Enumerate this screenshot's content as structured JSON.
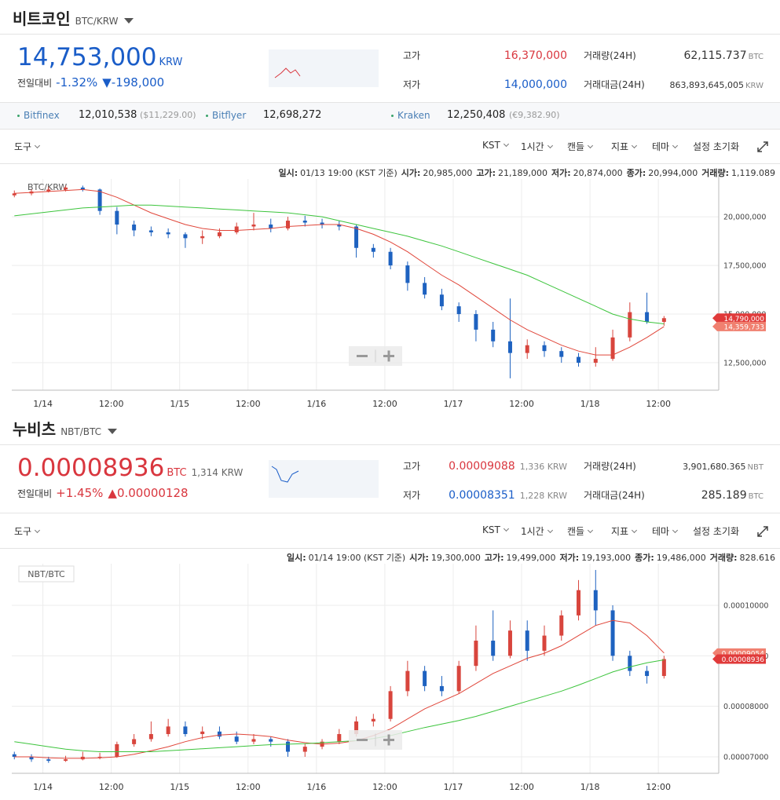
{
  "panels": [
    {
      "name": "비트코인",
      "pair": "BTC/KRW",
      "price": "14,753,000",
      "price_unit": "KRW",
      "price_color": "#1a5dc8",
      "change": {
        "label": "전일대비",
        "pct": "-1.32%",
        "amount": "▼-198,000",
        "color": "#1a5dc8"
      },
      "stats": [
        {
          "label": "고가",
          "value": "16,370,000",
          "color": "#d9363e"
        },
        {
          "label": "저가",
          "value": "14,000,000",
          "color": "#1a5dc8"
        }
      ],
      "volume": [
        {
          "label": "거래량(24H)",
          "value": "62,115.737",
          "unit": "BTC"
        },
        {
          "label": "거래대금(24H)",
          "value": "863,893,645,005",
          "unit": "KRW"
        }
      ],
      "exchanges": [
        {
          "name": "Bitfinex",
          "price": "12,010,538",
          "alt": "($11,229.00)"
        },
        {
          "name": "Bitflyer",
          "price": "12,698,272"
        },
        {
          "name": "Kraken",
          "price": "12,250,408",
          "alt": "(€9,382.90)"
        }
      ],
      "toolbar": [
        "도구",
        "KST",
        "1시간",
        "캔들",
        "지표",
        "테마",
        "설정 초기화"
      ]
    },
    {
      "name": "누비츠",
      "pair": "NBT/BTC",
      "price": "0.00008936",
      "price_unit": "BTC",
      "price_sub": "1,314 KRW",
      "price_color": "#d9363e",
      "change": {
        "label": "전일대비",
        "pct": "+1.45%",
        "amount": "▲0.00000128",
        "color": "#d9363e"
      },
      "stats": [
        {
          "label": "고가",
          "value": "0.00009088",
          "sub": "1,336 KRW",
          "color": "#d9363e"
        },
        {
          "label": "저가",
          "value": "0.00008351",
          "sub": "1,228 KRW",
          "color": "#1a5dc8"
        }
      ],
      "volume": [
        {
          "label": "거래량(24H)",
          "value": "3,901,680.365",
          "unit": "NBT"
        },
        {
          "label": "거래대금(24H)",
          "value": "285.189",
          "unit": "BTC"
        }
      ],
      "toolbar": [
        "도구",
        "KST",
        "1시간",
        "캔들",
        "지표",
        "테마",
        "설정 초기화"
      ]
    }
  ],
  "chart_data": [
    {
      "type": "candlestick",
      "label": "BTC/KRW",
      "label_box": false,
      "up_color": "#d8453d",
      "down_color": "#1e62c0",
      "grid": true,
      "info": [
        {
          "label": "일시:",
          "value": "01/13 19:00 (KST 기준)"
        },
        {
          "label": "시가:",
          "value": "20,985,000"
        },
        {
          "label": "고가:",
          "value": "21,189,000"
        },
        {
          "label": "저가:",
          "value": "20,874,000"
        },
        {
          "label": "종가:",
          "value": "20,994,000"
        },
        {
          "label": "거래량:",
          "value": "1,119.089"
        }
      ],
      "xlim": [
        -0.15,
        41.2
      ],
      "xticks": [
        {
          "value": 1.67,
          "label": "1/14"
        },
        {
          "value": 5.67,
          "label": "12:00"
        },
        {
          "value": 9.67,
          "label": "1/15"
        },
        {
          "value": 13.67,
          "label": "12:00"
        },
        {
          "value": 17.67,
          "label": "1/16"
        },
        {
          "value": 21.67,
          "label": "12:00"
        },
        {
          "value": 25.67,
          "label": "1/17"
        },
        {
          "value": 29.67,
          "label": "12:00"
        },
        {
          "value": 33.67,
          "label": "1/18"
        },
        {
          "value": 37.67,
          "label": "12:00"
        }
      ],
      "ylim": [
        11090000,
        21940000
      ],
      "yticks": [
        {
          "value": 12500000,
          "label": "12,500,000"
        },
        {
          "value": 15000000,
          "label": "15,000,000"
        },
        {
          "value": 17500000,
          "label": "17,500,000"
        },
        {
          "value": 20000000,
          "label": "20,000,000"
        }
      ],
      "candles": [
        [
          21100000,
          21350000,
          21000000,
          21200000
        ],
        [
          21200000,
          21400000,
          21100000,
          21300000
        ],
        [
          21300000,
          21550000,
          21250000,
          21400000
        ],
        [
          21400000,
          21600000,
          21300000,
          21500000
        ],
        [
          21500000,
          21600000,
          21300000,
          21400000
        ],
        [
          21400000,
          21450000,
          20100000,
          20300000
        ],
        [
          20300000,
          20500000,
          19100000,
          19600000
        ],
        [
          19600000,
          19800000,
          19000000,
          19300000
        ],
        [
          19300000,
          19500000,
          19000000,
          19200000
        ],
        [
          19200000,
          19400000,
          18900000,
          19100000
        ],
        [
          19100000,
          19200000,
          18400000,
          18900000
        ],
        [
          18900000,
          19300000,
          18600000,
          19000000
        ],
        [
          19000000,
          19400000,
          18900000,
          19200000
        ],
        [
          19200000,
          19700000,
          19100000,
          19500000
        ],
        [
          19500000,
          20200000,
          19300000,
          19600000
        ],
        [
          19600000,
          19900000,
          19200000,
          19400000
        ],
        [
          19400000,
          20000000,
          19300000,
          19800000
        ],
        [
          19800000,
          20050000,
          19500000,
          19700000
        ],
        [
          19700000,
          19900000,
          19400000,
          19600000
        ],
        [
          19600000,
          19800000,
          19300000,
          19500000
        ],
        [
          19500000,
          19600000,
          17900000,
          18400000
        ],
        [
          18400000,
          18600000,
          17900000,
          18200000
        ],
        [
          18200000,
          18400000,
          17300000,
          17500000
        ],
        [
          17500000,
          17700000,
          16200000,
          16600000
        ],
        [
          16600000,
          16900000,
          15800000,
          16000000
        ],
        [
          16000000,
          16300000,
          15200000,
          15400000
        ],
        [
          15400000,
          15600000,
          14600000,
          15000000
        ],
        [
          15000000,
          15200000,
          13600000,
          14200000
        ],
        [
          14200000,
          14600000,
          13300000,
          13600000
        ],
        [
          13600000,
          15800000,
          11700000,
          13000000
        ],
        [
          13000000,
          13700000,
          12700000,
          13400000
        ],
        [
          13400000,
          13600000,
          12800000,
          13100000
        ],
        [
          13100000,
          13300000,
          12500000,
          12800000
        ],
        [
          12800000,
          13000000,
          12300000,
          12500000
        ],
        [
          12500000,
          13300000,
          12300000,
          12700000
        ],
        [
          12700000,
          14200000,
          12600000,
          13800000
        ],
        [
          13800000,
          15600000,
          13600000,
          15100000
        ],
        [
          15100000,
          16100000,
          14500000,
          14600000
        ],
        [
          14600000,
          14900000,
          14400000,
          14790000
        ]
      ],
      "ma": [
        {
          "color": "#e0463a",
          "values": [
            21200000,
            21250000,
            21300000,
            21350000,
            21400000,
            21300000,
            21000000,
            20600000,
            20200000,
            19900000,
            19600000,
            19400000,
            19300000,
            19300000,
            19350000,
            19400000,
            19500000,
            19550000,
            19600000,
            19600000,
            19400000,
            19100000,
            18700000,
            18200000,
            17600000,
            17000000,
            16500000,
            15900000,
            15300000,
            14700000,
            14200000,
            13800000,
            13400000,
            13100000,
            12900000,
            12900000,
            13300000,
            13800000,
            14359733
          ]
        },
        {
          "color": "#3cc43c",
          "values": [
            20050000,
            20150000,
            20250000,
            20350000,
            20450000,
            20500000,
            20550000,
            20600000,
            20600000,
            20550000,
            20500000,
            20450000,
            20400000,
            20350000,
            20300000,
            20250000,
            20200000,
            20100000,
            20000000,
            19800000,
            19600000,
            19400000,
            19200000,
            19000000,
            18750000,
            18500000,
            18200000,
            17900000,
            17600000,
            17300000,
            17000000,
            16600000,
            16200000,
            15800000,
            15400000,
            15000000,
            14750000,
            14600000,
            14500000
          ]
        }
      ],
      "price_tags": [
        {
          "value": 14790000,
          "label": "14,790,000",
          "color": "#e03a3a"
        },
        {
          "value": 14359733,
          "label": "14,359,733",
          "color": "#f08070"
        }
      ]
    },
    {
      "type": "candlestick",
      "label": "NBT/BTC",
      "label_box": true,
      "up_color": "#d8453d",
      "down_color": "#1e62c0",
      "grid": true,
      "info": [
        {
          "label": "일시:",
          "value": "01/14 19:00 (KST 기준)"
        },
        {
          "label": "시가:",
          "value": "19,300,000"
        },
        {
          "label": "고가:",
          "value": "19,499,000"
        },
        {
          "label": "저가:",
          "value": "19,193,000"
        },
        {
          "label": "종가:",
          "value": "19,486,000"
        },
        {
          "label": "거래량:",
          "value": "828.616"
        }
      ],
      "xlim": [
        -0.15,
        41.2
      ],
      "xticks": [
        {
          "value": 1.67,
          "label": "1/14"
        },
        {
          "value": 5.67,
          "label": "12:00"
        },
        {
          "value": 9.67,
          "label": "1/15"
        },
        {
          "value": 13.67,
          "label": "12:00"
        },
        {
          "value": 17.67,
          "label": "1/16"
        },
        {
          "value": 21.67,
          "label": "12:00"
        },
        {
          "value": 25.67,
          "label": "1/17"
        },
        {
          "value": 29.67,
          "label": "12:00"
        },
        {
          "value": 33.67,
          "label": "1/18"
        },
        {
          "value": 37.67,
          "label": "12:00"
        }
      ],
      "ylim": [
        6.673e-05,
        0.00010824
      ],
      "yticks": [
        {
          "value": 7e-05,
          "label": "0.00007000"
        },
        {
          "value": 8e-05,
          "label": "0.00008000"
        },
        {
          "value": 9e-05,
          "label": "0.00009000"
        },
        {
          "value": 0.0001,
          "label": "0.00010000"
        }
      ],
      "candles": [
        [
          7.05e-05,
          7.1e-05,
          6.95e-05,
          7e-05
        ],
        [
          7e-05,
          7.05e-05,
          6.9e-05,
          6.95e-05
        ],
        [
          6.95e-05,
          7e-05,
          6.88e-05,
          6.92e-05
        ],
        [
          6.92e-05,
          7.02e-05,
          6.9e-05,
          6.95e-05
        ],
        [
          6.95e-05,
          7.1e-05,
          6.93e-05,
          7e-05
        ],
        [
          7e-05,
          7.08e-05,
          6.95e-05,
          7e-05
        ],
        [
          7e-05,
          7.3e-05,
          6.98e-05,
          7.25e-05
        ],
        [
          7.25e-05,
          7.45e-05,
          7.2e-05,
          7.35e-05
        ],
        [
          7.35e-05,
          7.7e-05,
          7.3e-05,
          7.45e-05
        ],
        [
          7.45e-05,
          7.75e-05,
          7.4e-05,
          7.6e-05
        ],
        [
          7.6e-05,
          7.7e-05,
          7.4e-05,
          7.45e-05
        ],
        [
          7.45e-05,
          7.6e-05,
          7.35e-05,
          7.5e-05
        ],
        [
          7.5e-05,
          7.6e-05,
          7.35e-05,
          7.4e-05
        ],
        [
          7.4e-05,
          7.5e-05,
          7.25e-05,
          7.3e-05
        ],
        [
          7.3e-05,
          7.45e-05,
          7.25e-05,
          7.35e-05
        ],
        [
          7.35e-05,
          7.4e-05,
          7.2e-05,
          7.3e-05
        ],
        [
          7.3e-05,
          7.35e-05,
          7e-05,
          7.1e-05
        ],
        [
          7.1e-05,
          7.25e-05,
          7e-05,
          7.2e-05
        ],
        [
          7.2e-05,
          7.35e-05,
          7.15e-05,
          7.3e-05
        ],
        [
          7.3e-05,
          7.55e-05,
          7.25e-05,
          7.45e-05
        ],
        [
          7.45e-05,
          7.8e-05,
          7.4e-05,
          7.7e-05
        ],
        [
          7.7e-05,
          7.85e-05,
          7.6e-05,
          7.75e-05
        ],
        [
          7.75e-05,
          8.4e-05,
          7.7e-05,
          8.3e-05
        ],
        [
          8.3e-05,
          8.9e-05,
          8.2e-05,
          8.7e-05
        ],
        [
          8.7e-05,
          8.8e-05,
          8.3e-05,
          8.4e-05
        ],
        [
          8.4e-05,
          8.6e-05,
          8.2e-05,
          8.3e-05
        ],
        [
          8.3e-05,
          8.9e-05,
          8.25e-05,
          8.8e-05
        ],
        [
          8.8e-05,
          9.6e-05,
          8.7e-05,
          9.3e-05
        ],
        [
          9.3e-05,
          9.9e-05,
          8.9e-05,
          9e-05
        ],
        [
          9e-05,
          9.7e-05,
          8.95e-05,
          9.5e-05
        ],
        [
          9.5e-05,
          9.7e-05,
          8.9e-05,
          9.1e-05
        ],
        [
          9.1e-05,
          9.6e-05,
          9e-05,
          9.4e-05
        ],
        [
          9.4e-05,
          9.9e-05,
          9.3e-05,
          9.8e-05
        ],
        [
          9.8e-05,
          0.000105,
          9.7e-05,
          0.000103
        ],
        [
          0.000103,
          0.000107,
          9.6e-05,
          9.9e-05
        ],
        [
          9.9e-05,
          0.0001,
          8.9e-05,
          9e-05
        ],
        [
          9e-05,
          9.1e-05,
          8.6e-05,
          8.7e-05
        ],
        [
          8.7e-05,
          8.8e-05,
          8.45e-05,
          8.6e-05
        ],
        [
          8.6e-05,
          9e-05,
          8.55e-05,
          8.936e-05
        ]
      ],
      "ma": [
        {
          "color": "#e0463a",
          "values": [
            7e-05,
            7e-05,
            6.98e-05,
            6.97e-05,
            6.97e-05,
            6.98e-05,
            7e-05,
            7.05e-05,
            7.12e-05,
            7.2e-05,
            7.3e-05,
            7.38e-05,
            7.43e-05,
            7.45e-05,
            7.43e-05,
            7.4e-05,
            7.33e-05,
            7.28e-05,
            7.25e-05,
            7.27e-05,
            7.32e-05,
            7.42e-05,
            7.55e-05,
            7.75e-05,
            7.95e-05,
            8.1e-05,
            8.25e-05,
            8.45e-05,
            8.65e-05,
            8.8e-05,
            8.95e-05,
            9.05e-05,
            9.2e-05,
            9.4e-05,
            9.6e-05,
            9.7e-05,
            9.65e-05,
            9.4e-05,
            9.054e-05
          ]
        },
        {
          "color": "#3cc43c",
          "values": [
            7.3e-05,
            7.25e-05,
            7.2e-05,
            7.15e-05,
            7.12e-05,
            7.1e-05,
            7.1e-05,
            7.1e-05,
            7.1e-05,
            7.12e-05,
            7.14e-05,
            7.16e-05,
            7.18e-05,
            7.2e-05,
            7.22e-05,
            7.24e-05,
            7.25e-05,
            7.26e-05,
            7.28e-05,
            7.3e-05,
            7.32e-05,
            7.36e-05,
            7.42e-05,
            7.5e-05,
            7.58e-05,
            7.65e-05,
            7.72e-05,
            7.8e-05,
            7.9e-05,
            8e-05,
            8.1e-05,
            8.2e-05,
            8.3e-05,
            8.42e-05,
            8.55e-05,
            8.68e-05,
            8.78e-05,
            8.86e-05,
            8.92e-05
          ]
        }
      ],
      "price_tags": [
        {
          "value": 9.054e-05,
          "label": "0.00009054",
          "color": "#f08070"
        },
        {
          "value": 8.936e-05,
          "label": "0.00008936",
          "color": "#e03a3a"
        }
      ]
    }
  ]
}
